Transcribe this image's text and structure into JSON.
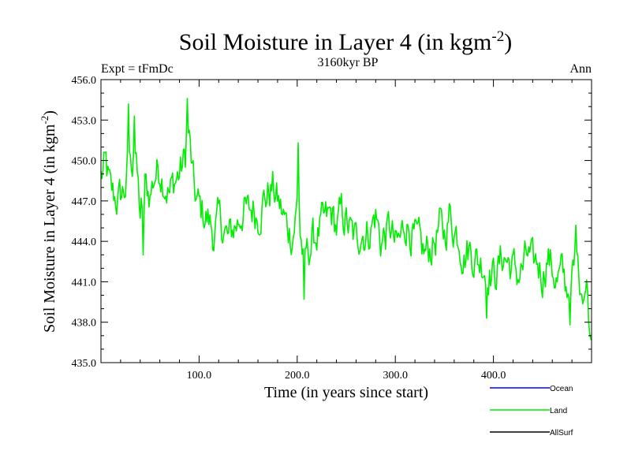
{
  "chart_data": {
    "type": "line",
    "title": "Soil Moisture in Layer 4 (in kgm",
    "title_sup": "-2",
    "title_close": ")",
    "subtitle": "3160kyr BP",
    "left_label": "Expt = tFmDc",
    "right_label": "Ann",
    "xlabel": "Time (in years since start)",
    "ylabel": "Soil Moisture in Layer 4 (in kgm",
    "ylabel_sup": "-2",
    "ylabel_close": ")",
    "xlim": [
      0,
      500
    ],
    "ylim": [
      435.0,
      456.0
    ],
    "x_ticks": [
      100,
      200,
      300,
      400
    ],
    "x_tick_labels": [
      "100.0",
      "200.0",
      "300.0",
      "400.0"
    ],
    "y_ticks": [
      435,
      438,
      441,
      444,
      447,
      450,
      453,
      456
    ],
    "y_tick_labels": [
      "435.0",
      "438.0",
      "441.0",
      "444.0",
      "447.0",
      "450.0",
      "453.0",
      "456.0"
    ],
    "legend": [
      {
        "name": "Ocean",
        "color": "#0000ff"
      },
      {
        "name": "Land",
        "color": "#00ee00"
      },
      {
        "name": "AllSurf",
        "color": "#000000"
      }
    ],
    "series": [
      {
        "name": "Land",
        "color": "#00ee00",
        "x_start": 0,
        "x_step": 1,
        "anchors_x": [
          0,
          5,
          10,
          18,
          25,
          30,
          35,
          40,
          45,
          50,
          55,
          60,
          65,
          70,
          75,
          80,
          85,
          90,
          95,
          100,
          105,
          110,
          115,
          120,
          125,
          130,
          135,
          140,
          145,
          150,
          155,
          160,
          165,
          170,
          175,
          180,
          185,
          190,
          195,
          200,
          205,
          210,
          215,
          220,
          225,
          230,
          235,
          240,
          245,
          250,
          255,
          260,
          265,
          270,
          275,
          280,
          285,
          290,
          295,
          300,
          305,
          310,
          315,
          320,
          325,
          330,
          335,
          340,
          345,
          350,
          355,
          360,
          365,
          370,
          375,
          380,
          385,
          390,
          395,
          400,
          405,
          410,
          415,
          420,
          425,
          430,
          435,
          440,
          445,
          450,
          455,
          460,
          465,
          470,
          475,
          480,
          485,
          490,
          495,
          500
        ],
        "anchors_y": [
          448.8,
          449.5,
          447.5,
          447.0,
          448.0,
          449.5,
          450.5,
          446.0,
          448.0,
          447.5,
          449.0,
          449.5,
          448.5,
          447.5,
          448.5,
          449.0,
          450.0,
          451.5,
          447.5,
          446.5,
          446.0,
          445.5,
          444.5,
          445.5,
          445.0,
          444.0,
          445.0,
          445.5,
          446.5,
          446.0,
          446.5,
          446.0,
          447.0,
          447.5,
          448.0,
          447.0,
          446.0,
          445.0,
          444.5,
          446.5,
          443.5,
          443.0,
          444.0,
          444.5,
          445.0,
          445.5,
          446.0,
          445.0,
          446.0,
          445.5,
          444.5,
          444.0,
          445.0,
          444.5,
          445.0,
          446.0,
          444.0,
          444.5,
          445.0,
          443.5,
          444.0,
          445.5,
          445.0,
          444.0,
          443.5,
          443.0,
          443.5,
          444.0,
          445.0,
          444.5,
          446.0,
          445.0,
          444.5,
          443.0,
          443.5,
          443.0,
          442.5,
          442.5,
          442.0,
          441.5,
          442.0,
          443.0,
          442.5,
          442.0,
          441.5,
          442.0,
          443.0,
          442.0,
          442.5,
          441.5,
          443.0,
          442.0,
          441.0,
          441.5,
          440.5,
          441.0,
          442.5,
          441.0,
          440.5,
          437.0
        ],
        "noise_amplitude": 1.3,
        "extremes": [
          {
            "x": 28,
            "y": 454.2
          },
          {
            "x": 34,
            "y": 453.3
          },
          {
            "x": 43,
            "y": 443.0
          },
          {
            "x": 88,
            "y": 454.6
          },
          {
            "x": 201,
            "y": 451.3
          },
          {
            "x": 207,
            "y": 439.7
          },
          {
            "x": 393,
            "y": 438.3
          },
          {
            "x": 478,
            "y": 437.8
          },
          {
            "x": 484,
            "y": 445.2
          },
          {
            "x": 499,
            "y": 436.8
          }
        ]
      }
    ]
  }
}
